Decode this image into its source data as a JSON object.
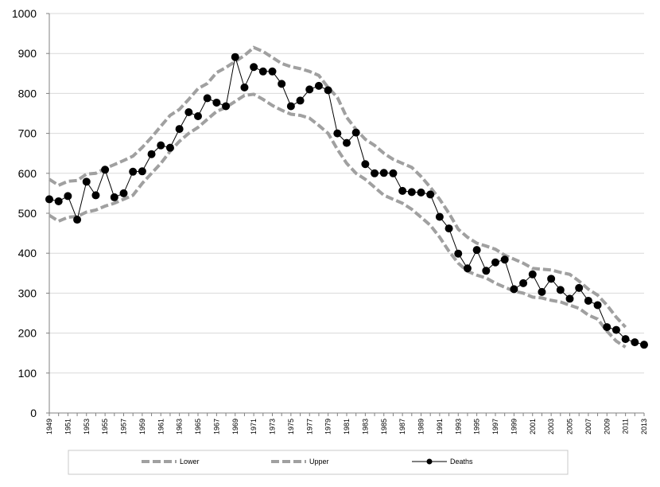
{
  "chart_data": {
    "type": "line",
    "title": "",
    "xlabel": "",
    "ylabel": "",
    "ylim": [
      0,
      1000
    ],
    "yticks": [
      0,
      100,
      200,
      300,
      400,
      500,
      600,
      700,
      800,
      900,
      1000
    ],
    "x": [
      1949,
      1950,
      1951,
      1952,
      1953,
      1954,
      1955,
      1956,
      1957,
      1958,
      1959,
      1960,
      1961,
      1962,
      1963,
      1964,
      1965,
      1966,
      1967,
      1968,
      1969,
      1970,
      1971,
      1972,
      1973,
      1974,
      1975,
      1976,
      1977,
      1978,
      1979,
      1980,
      1981,
      1982,
      1983,
      1984,
      1985,
      1986,
      1987,
      1988,
      1989,
      1990,
      1991,
      1992,
      1993,
      1994,
      1995,
      1996,
      1997,
      1998,
      1999,
      2000,
      2001,
      2002,
      2003,
      2004,
      2005,
      2006,
      2007,
      2008,
      2009,
      2010,
      2011,
      2012,
      2013
    ],
    "xtick_labels": [
      "1949",
      "1951",
      "1953",
      "1955",
      "1957",
      "1959",
      "1961",
      "1963",
      "1965",
      "1967",
      "1969",
      "1971",
      "1973",
      "1975",
      "1977",
      "1979",
      "1981",
      "1983",
      "1985",
      "1987",
      "1989",
      "1991",
      "1993",
      "1995",
      "1997",
      "1999",
      "2001",
      "2003",
      "2005",
      "2007",
      "2009",
      "2011",
      "2013"
    ],
    "grid": true,
    "legend_position": "bottom",
    "series": [
      {
        "name": "Lower",
        "style": "dashed",
        "color": "#a0a0a0",
        "values": [
          495,
          480,
          490,
          492,
          503,
          508,
          518,
          525,
          535,
          545,
          575,
          600,
          625,
          655,
          680,
          700,
          715,
          735,
          755,
          765,
          780,
          795,
          798,
          785,
          770,
          758,
          748,
          745,
          738,
          720,
          700,
          660,
          625,
          600,
          585,
          565,
          545,
          535,
          525,
          510,
          490,
          470,
          440,
          405,
          375,
          355,
          345,
          338,
          325,
          315,
          305,
          300,
          290,
          288,
          282,
          278,
          270,
          262,
          245,
          235,
          205,
          180,
          165,
          null,
          null
        ]
      },
      {
        "name": "Upper",
        "style": "dashed",
        "color": "#a0a0a0",
        "values": [
          585,
          570,
          580,
          582,
          598,
          600,
          612,
          622,
          632,
          643,
          665,
          690,
          718,
          745,
          760,
          785,
          812,
          825,
          852,
          865,
          880,
          895,
          915,
          905,
          890,
          875,
          867,
          862,
          855,
          845,
          815,
          790,
          740,
          710,
          685,
          670,
          650,
          635,
          625,
          615,
          592,
          565,
          535,
          500,
          460,
          440,
          425,
          418,
          410,
          395,
          385,
          375,
          362,
          360,
          358,
          352,
          347,
          330,
          310,
          295,
          270,
          240,
          215,
          null,
          null
        ]
      },
      {
        "name": "Deaths",
        "style": "solid",
        "color": "#000000",
        "values": [
          535,
          530,
          543,
          484,
          579,
          545,
          609,
          540,
          550,
          604,
          605,
          648,
          670,
          664,
          711,
          753,
          743,
          788,
          777,
          768,
          891,
          815,
          866,
          855,
          855,
          824,
          768,
          782,
          810,
          819,
          808,
          700,
          676,
          702,
          623,
          600,
          601,
          600,
          556,
          553,
          552,
          547,
          491,
          462,
          399,
          362,
          408,
          356,
          377,
          384,
          310,
          325,
          347,
          303,
          336,
          308,
          286,
          313,
          281,
          270,
          215,
          208,
          185,
          177,
          171
        ]
      }
    ]
  }
}
